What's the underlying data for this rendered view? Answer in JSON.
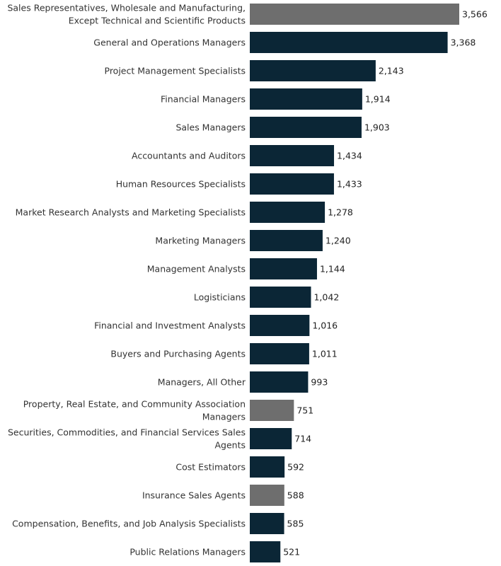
{
  "chart_data": {
    "type": "bar",
    "orientation": "horizontal",
    "title": "",
    "xlabel": "",
    "ylabel": "",
    "xlim": [
      0,
      3566
    ],
    "grid": false,
    "colors": {
      "primary": "#0b2636",
      "highlight": "#6e6e6e"
    },
    "categories": [
      [
        "Sales Representatives, Wholesale and Manufacturing,",
        "Except Technical and Scientific Products"
      ],
      [
        "General and Operations Managers"
      ],
      [
        "Project Management Specialists"
      ],
      [
        "Financial Managers"
      ],
      [
        "Sales Managers"
      ],
      [
        "Accountants and Auditors"
      ],
      [
        "Human Resources Specialists"
      ],
      [
        "Market Research Analysts and Marketing Specialists"
      ],
      [
        "Marketing Managers"
      ],
      [
        "Management Analysts"
      ],
      [
        "Logisticians"
      ],
      [
        "Financial and Investment Analysts"
      ],
      [
        "Buyers and Purchasing Agents"
      ],
      [
        "Managers, All Other"
      ],
      [
        "Property, Real Estate, and Community Association",
        "Managers"
      ],
      [
        "Securities, Commodities, and Financial Services Sales",
        "Agents"
      ],
      [
        "Cost Estimators"
      ],
      [
        "Insurance Sales Agents"
      ],
      [
        "Compensation, Benefits, and Job Analysis Specialists"
      ],
      [
        "Public Relations Managers"
      ]
    ],
    "values": [
      3566,
      3368,
      2143,
      1914,
      1903,
      1434,
      1433,
      1278,
      1240,
      1144,
      1042,
      1016,
      1011,
      993,
      751,
      714,
      592,
      588,
      585,
      521
    ],
    "value_labels": [
      "3,566",
      "3,368",
      "2,143",
      "1,914",
      "1,903",
      "1,434",
      "1,433",
      "1,278",
      "1,240",
      "1,144",
      "1,042",
      "1,016",
      "1,011",
      "993",
      "751",
      "714",
      "592",
      "588",
      "585",
      "521"
    ],
    "highlighted": [
      true,
      false,
      false,
      false,
      false,
      false,
      false,
      false,
      false,
      false,
      false,
      false,
      false,
      false,
      true,
      false,
      false,
      true,
      false,
      false
    ]
  }
}
